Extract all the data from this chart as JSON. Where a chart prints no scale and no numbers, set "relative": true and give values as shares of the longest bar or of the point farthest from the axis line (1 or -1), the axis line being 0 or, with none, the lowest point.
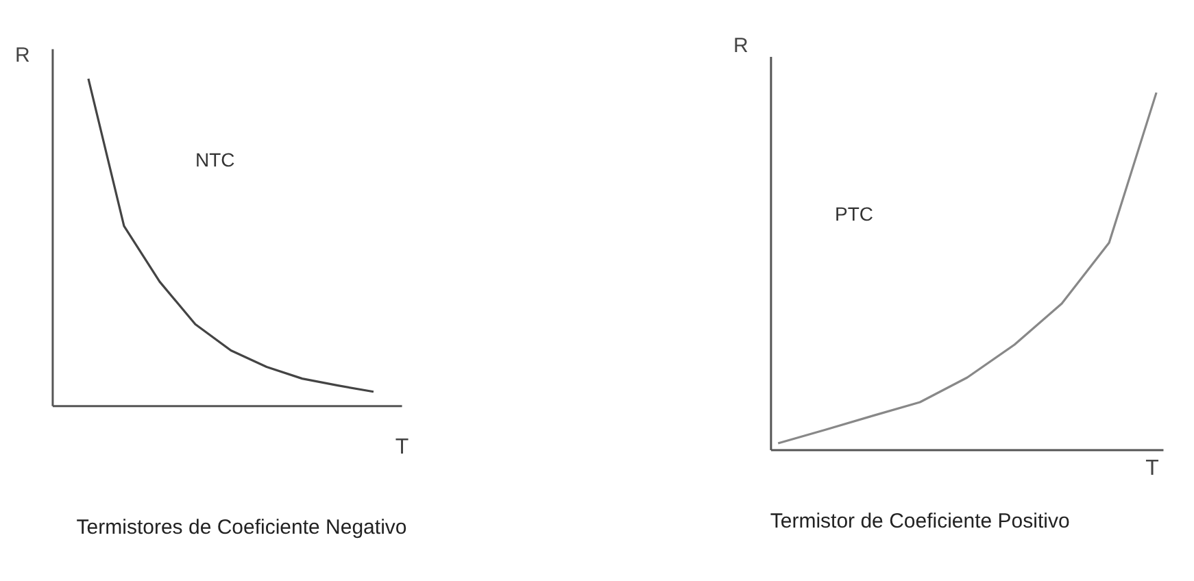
{
  "chart_data": [
    {
      "type": "line",
      "title": "Termistores de Coeficiente Negativo",
      "xlabel": "T",
      "ylabel": "R",
      "relative": true,
      "grid": false,
      "categories": [
        null,
        null,
        null,
        null,
        null,
        null,
        null,
        null,
        null
      ],
      "series": [
        {
          "name": "NTC",
          "color": "#444444",
          "values": [
            1,
            0.55,
            0.38,
            0.25,
            0.17,
            0.12,
            0.084,
            0.063,
            0.044
          ]
        }
      ]
    },
    {
      "type": "line",
      "title": "Termistor de Coeficiente Positivo",
      "xlabel": "T",
      "ylabel": "R",
      "relative": true,
      "grid": false,
      "categories": [
        null,
        null,
        null,
        null,
        null,
        null,
        null,
        null,
        null
      ],
      "series": [
        {
          "name": "PTC",
          "color": "#888888",
          "values": [
            0.019,
            0.057,
            0.096,
            0.134,
            0.203,
            0.295,
            0.41,
            0.58,
            1
          ]
        }
      ]
    }
  ]
}
